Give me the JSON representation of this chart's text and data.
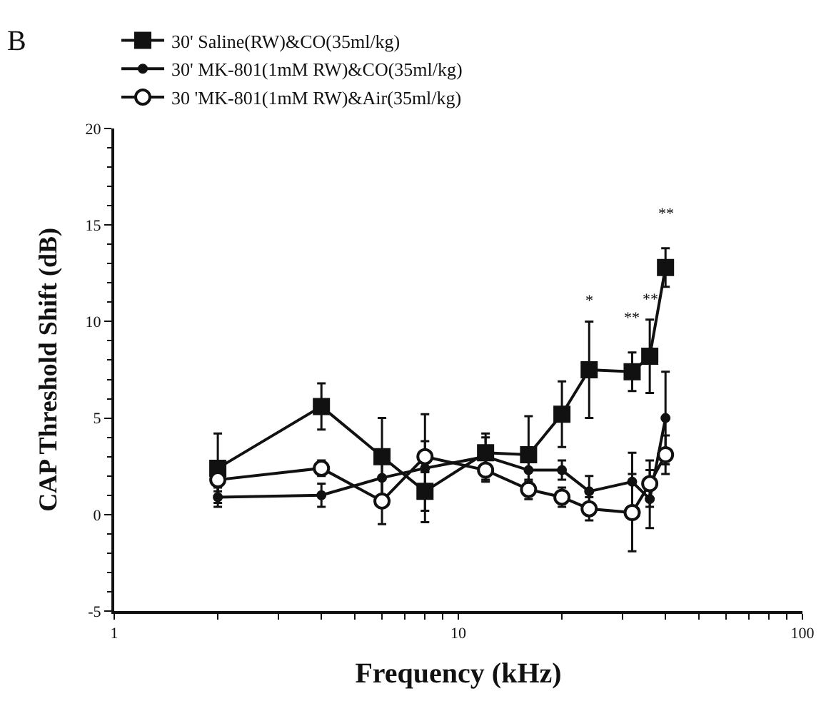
{
  "chart_data": {
    "type": "line",
    "xlabel": "Frequency (kHz)",
    "ylabel": "CAP Threshold Shift (dB)",
    "x": [
      2,
      4,
      6,
      8,
      12,
      16,
      20,
      24,
      32,
      36,
      40
    ],
    "series": [
      {
        "name": "30' Saline(RW)&CO(35ml/kg)",
        "color": "#111111",
        "marker": "square",
        "values": [
          2.4,
          5.6,
          3.0,
          1.2,
          3.2,
          3.1,
          5.2,
          7.5,
          7.4,
          8.2,
          12.8
        ],
        "errors": [
          1.8,
          1.2,
          2.0,
          1.0,
          0.8,
          2.0,
          1.7,
          2.5,
          1.0,
          1.9,
          1.0
        ]
      },
      {
        "name": "30' MK-801(1mM RW)&CO(35ml/kg)",
        "color": "#111111",
        "marker": "circle",
        "values": [
          0.9,
          1.0,
          1.9,
          2.4,
          3.0,
          2.3,
          2.3,
          1.2,
          1.7,
          0.8,
          5.0
        ],
        "errors": [
          0.5,
          0.6,
          1.0,
          2.8,
          1.2,
          0.6,
          0.5,
          0.8,
          1.5,
          1.5,
          2.4
        ]
      },
      {
        "name": "30 'MK-801(1mM RW)&Air(35ml/kg)",
        "color": "#111111",
        "marker": "circle",
        "values": [
          1.8,
          2.4,
          0.7,
          3.0,
          2.3,
          1.3,
          0.9,
          0.3,
          0.1,
          1.6,
          3.1
        ],
        "errors": [
          0.6,
          0.4,
          1.2,
          0.8,
          0.6,
          0.5,
          0.5,
          0.6,
          2.0,
          1.2,
          1.0
        ]
      }
    ],
    "xlim": [
      1,
      100
    ],
    "xticks": [
      1,
      {
        "value": 2,
        "label": null
      },
      {
        "value": 3,
        "label": null
      },
      {
        "value": 4,
        "label": null
      },
      {
        "value": 5,
        "label": null
      },
      {
        "value": 6,
        "label": null
      },
      {
        "value": 7,
        "label": null
      },
      {
        "value": 8,
        "label": null
      },
      {
        "value": 9,
        "label": null
      },
      10,
      {
        "value": 20,
        "label": null
      },
      {
        "value": 30,
        "label": null
      },
      {
        "value": 40,
        "label": null
      },
      {
        "value": 50,
        "label": null
      },
      {
        "value": 60,
        "label": null
      },
      {
        "value": 70,
        "label": null
      },
      {
        "value": 80,
        "label": null
      },
      {
        "value": 90,
        "label": null
      },
      100
    ],
    "log": "x",
    "ylim": [
      -5,
      20
    ],
    "yticks": [
      -5,
      0,
      5,
      10,
      15,
      20
    ],
    "legend": "top",
    "annotations": [
      "B",
      "*",
      "**",
      "**",
      "**"
    ]
  }
}
